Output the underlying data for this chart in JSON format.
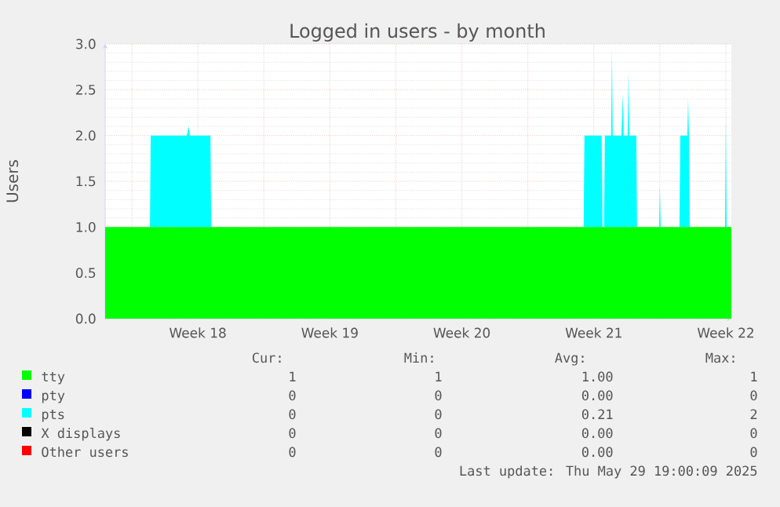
{
  "chart_data": {
    "type": "area",
    "title": "Logged in users - by month",
    "ylabel": "Users",
    "stacked": true,
    "grid": true,
    "legend": "bottom",
    "x": [
      "2025-04-26T14:00",
      "2025-04-28T23:00",
      "2025-04-29T00:00",
      "2025-04-30T22:00",
      "2025-05-01T00:00",
      "2025-05-01T02:00",
      "2025-05-02T04:00",
      "2025-05-02T05:00",
      "2025-05-21T23:00",
      "2025-05-22T00:00",
      "2025-05-22T22:00",
      "2025-05-22T23:00",
      "2025-05-23T01:00",
      "2025-05-23T02:00",
      "2025-05-23T10:00",
      "2025-05-23T11:00",
      "2025-05-23T12:00",
      "2025-05-23T23:00",
      "2025-05-24T01:00",
      "2025-05-24T02:00",
      "2025-05-24T07:00",
      "2025-05-24T08:00",
      "2025-05-24T09:00",
      "2025-05-24T18:00",
      "2025-05-24T19:00",
      "2025-05-25T23:00",
      "2025-05-26T00:00",
      "2025-05-26T01:00",
      "2025-05-27T01:00",
      "2025-05-27T02:00",
      "2025-05-27T11:00",
      "2025-05-27T12:00",
      "2025-05-27T13:00",
      "2025-05-27T14:00",
      "2025-05-29T11:00",
      "2025-05-29T12:00",
      "2025-05-29T13:00",
      "2025-05-29T19:00"
    ],
    "series": [
      {
        "name": "tty",
        "color": "#00ff00",
        "values": [
          1,
          1,
          1,
          1,
          1,
          1,
          1,
          1,
          1,
          1,
          1,
          1,
          1,
          1,
          1,
          1,
          1,
          1,
          1,
          1,
          1,
          1,
          1,
          1,
          1,
          1,
          1,
          1,
          1,
          1,
          1,
          1,
          1,
          1,
          1,
          1,
          1,
          1
        ]
      },
      {
        "name": "pty",
        "color": "#0000ff",
        "values": [
          null,
          null,
          null,
          null,
          null,
          null,
          null,
          null,
          null,
          null,
          null,
          null,
          null,
          null,
          null,
          null,
          null,
          null,
          null,
          null,
          null,
          null,
          null,
          null,
          null,
          null,
          null,
          null,
          null,
          null,
          null,
          null,
          null,
          null,
          null,
          null,
          null,
          null
        ]
      },
      {
        "name": "pts",
        "color": "#00ffff",
        "values": [
          0,
          0,
          1,
          1,
          1.1,
          1,
          1,
          0,
          0,
          1,
          1,
          0,
          0,
          1,
          1,
          1.95,
          1,
          1,
          1.45,
          1,
          1,
          1.7,
          1,
          1,
          0,
          0,
          0.45,
          0,
          0,
          1,
          1,
          1.4,
          1,
          0,
          0,
          1.2,
          0,
          0
        ]
      },
      {
        "name": "X displays",
        "color": "#000000",
        "values": [
          null,
          null,
          null,
          null,
          null,
          null,
          null,
          null,
          null,
          null,
          null,
          null,
          null,
          null,
          null,
          null,
          null,
          null,
          null,
          null,
          null,
          null,
          null,
          null,
          null,
          null,
          null,
          null,
          null,
          null,
          null,
          null,
          null,
          null,
          null,
          null,
          null,
          null
        ]
      },
      {
        "name": "Other users",
        "color": "#ff0000",
        "values": [
          null,
          null,
          null,
          null,
          null,
          null,
          null,
          null,
          null,
          null,
          null,
          null,
          null,
          null,
          null,
          null,
          null,
          null,
          null,
          null,
          null,
          null,
          null,
          null,
          null,
          null,
          null,
          null,
          null,
          null,
          null,
          null,
          null,
          null,
          null,
          null,
          null,
          null
        ]
      }
    ],
    "xlim": [
      "2025-04-26T14:00",
      "2025-05-29T19:00"
    ],
    "ylim": [
      0,
      3
    ],
    "xticks": [
      {
        "value": "2025-04-28",
        "label": null
      },
      {
        "value": "2025-05-01T12:00",
        "label": "Week 18"
      },
      {
        "value": "2025-05-05",
        "label": null
      },
      {
        "value": "2025-05-08T12:00",
        "label": "Week 19"
      },
      {
        "value": "2025-05-12",
        "label": null
      },
      {
        "value": "2025-05-15T12:00",
        "label": "Week 20"
      },
      {
        "value": "2025-05-19",
        "label": null
      },
      {
        "value": "2025-05-22T12:00",
        "label": "Week 21"
      },
      {
        "value": "2025-05-26",
        "label": null
      },
      {
        "value": "2025-05-29T12:00",
        "label": "Week 22"
      }
    ],
    "yticks": [
      {
        "value": 0,
        "label": "0.0"
      },
      {
        "value": 0.5,
        "label": "0.5"
      },
      {
        "value": 1,
        "label": "1.0"
      },
      {
        "value": 1.5,
        "label": "1.5"
      },
      {
        "value": 2,
        "label": "2.0"
      },
      {
        "value": 2.5,
        "label": "2.5"
      },
      {
        "value": 3,
        "label": "3.0"
      }
    ],
    "annotations": [
      "Cur:",
      "Min:",
      "Avg:",
      "Max:",
      "1",
      "1",
      "1.00",
      "1",
      "0",
      "0",
      "0.00",
      "0",
      "0",
      "0",
      "0.21",
      "2",
      "0",
      "0",
      "0.00",
      "0",
      "0",
      "0",
      "0.00",
      "0",
      "Last update: Thu May 29 19:00:09 2025"
    ]
  }
}
